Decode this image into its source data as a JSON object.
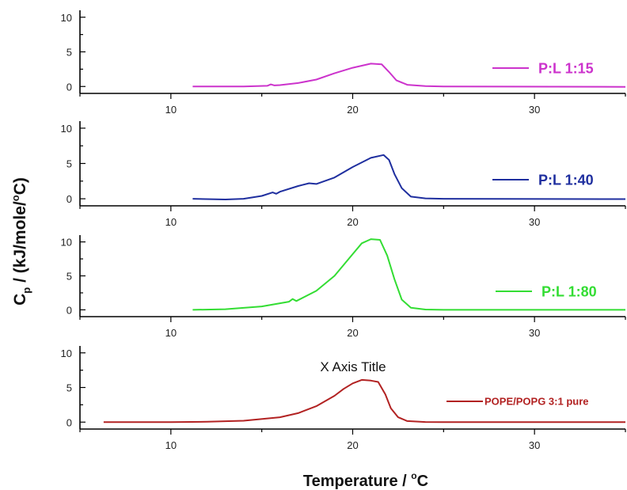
{
  "chart_data": {
    "type": "line",
    "ylabel": {
      "main": "C",
      "sub": "p",
      "rest": " / (kJ/mole/",
      "degree": "o",
      "end": "C)"
    },
    "xlabel": {
      "main": "Temperature / ",
      "degree": "o",
      "end": "C"
    },
    "annotation": "X Axis Title",
    "xlim": [
      5,
      35
    ],
    "x_ticks": [
      10,
      20,
      30
    ],
    "ylim": [
      -1,
      11
    ],
    "y_ticks": [
      0,
      5,
      10
    ],
    "panels": [
      {
        "series": {
          "name": "P:L 1:15",
          "color": "#cc33cc",
          "x": [
            11.2,
            14,
            15.3,
            15.5,
            15.7,
            16,
            17,
            18,
            19,
            20,
            21,
            21.6,
            22,
            22.4,
            23,
            24,
            25,
            35
          ],
          "y": [
            0,
            0,
            0.1,
            0.3,
            0.15,
            0.2,
            0.5,
            1.0,
            1.9,
            2.7,
            3.3,
            3.2,
            2.1,
            0.9,
            0.25,
            0.05,
            0,
            -0.05
          ]
        }
      },
      {
        "series": {
          "name": "P:L 1:40",
          "color": "#1f2f9f",
          "x": [
            11.2,
            13,
            14,
            15,
            15.6,
            15.8,
            16,
            17,
            17.6,
            18,
            19,
            20,
            21,
            21.7,
            22,
            22.3,
            22.7,
            23.2,
            24,
            25,
            35
          ],
          "y": [
            0,
            -0.1,
            0,
            0.4,
            0.9,
            0.7,
            1.0,
            1.8,
            2.2,
            2.1,
            3.0,
            4.5,
            5.8,
            6.2,
            5.5,
            3.5,
            1.5,
            0.3,
            0.05,
            0,
            -0.05
          ]
        }
      },
      {
        "series": {
          "name": "P:L 1:80",
          "color": "#33dd33",
          "x": [
            11.2,
            13,
            15,
            16.5,
            16.7,
            16.9,
            18,
            19,
            20,
            20.5,
            21,
            21.5,
            21.9,
            22.3,
            22.7,
            23.2,
            24,
            25,
            35
          ],
          "y": [
            0,
            0.1,
            0.5,
            1.2,
            1.6,
            1.3,
            2.8,
            5.0,
            8.2,
            9.8,
            10.4,
            10.3,
            8.0,
            4.5,
            1.5,
            0.3,
            0.05,
            0,
            0
          ]
        }
      },
      {
        "series": {
          "name": "POPE/POPG 3:1 pure",
          "color": "#b22222",
          "x": [
            6.3,
            10,
            12,
            14,
            16,
            17,
            18,
            19,
            19.5,
            20,
            20.5,
            21,
            21.4,
            21.8,
            22.1,
            22.5,
            23,
            24,
            25,
            35
          ],
          "y": [
            0,
            0,
            0.05,
            0.2,
            0.7,
            1.3,
            2.3,
            3.8,
            4.8,
            5.6,
            6.1,
            6.0,
            5.8,
            4.0,
            2.0,
            0.7,
            0.15,
            0.02,
            0,
            0
          ]
        }
      }
    ]
  }
}
